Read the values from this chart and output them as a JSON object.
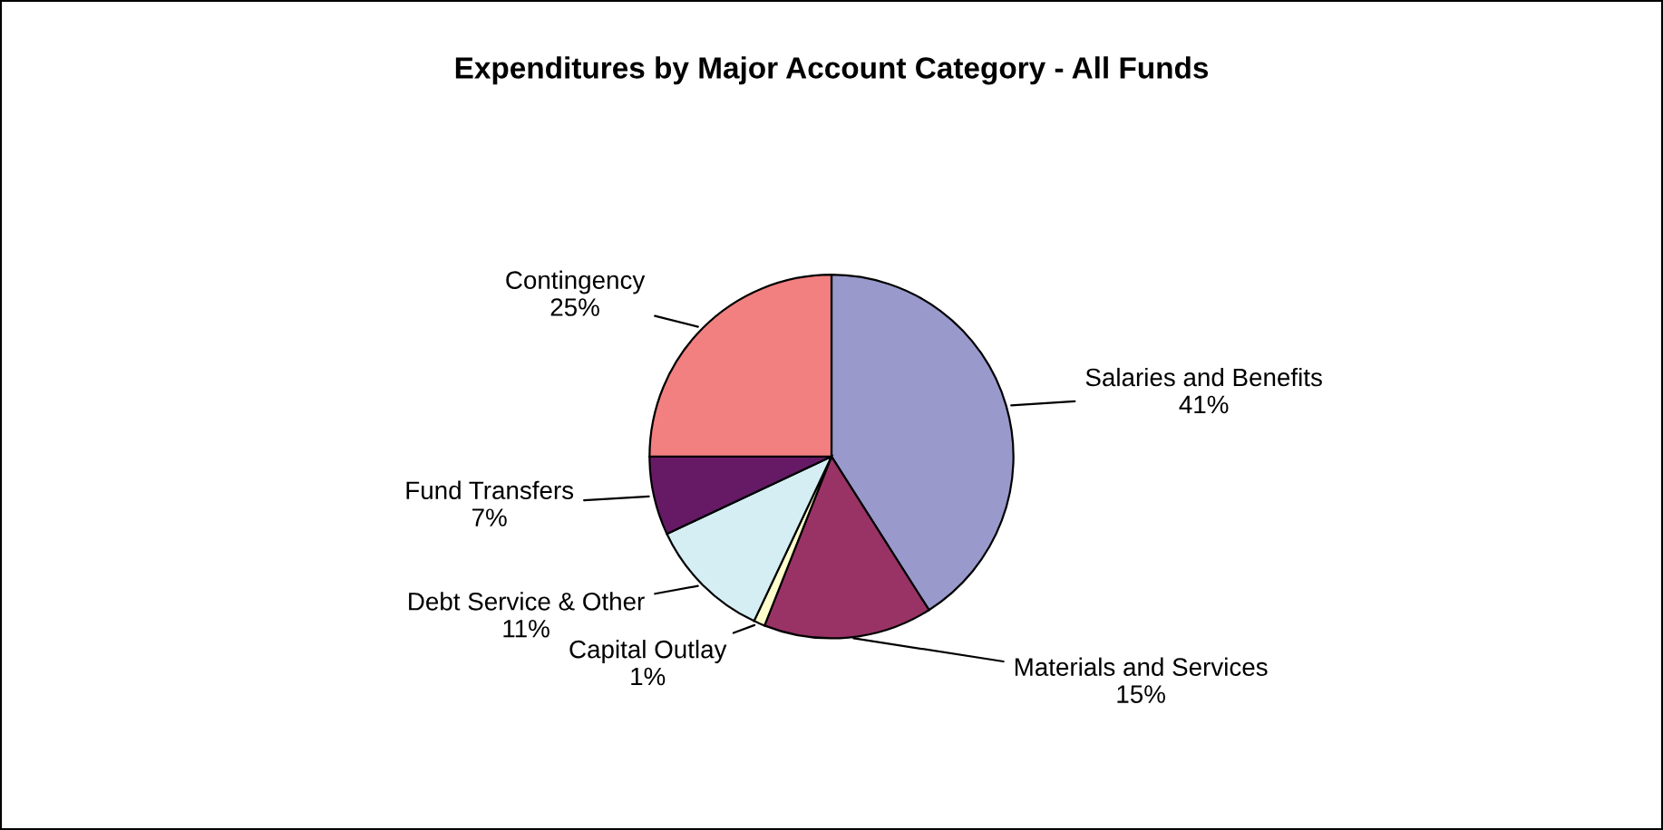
{
  "chart_data": {
    "type": "pie",
    "title": "Expenditures by Major Account Category - All Funds",
    "categories": [
      "Salaries and Benefits",
      "Materials and Services",
      "Capital Outlay",
      "Debt Service & Other",
      "Fund Transfers",
      "Contingency"
    ],
    "values": [
      41,
      15,
      1,
      11,
      7,
      25
    ],
    "value_labels": [
      "41%",
      "15%",
      "1%",
      "11%",
      "7%",
      "25%"
    ],
    "colors": [
      "#9999cc",
      "#993366",
      "#ffffcc",
      "#d4eef4",
      "#661a66",
      "#f28080"
    ]
  }
}
